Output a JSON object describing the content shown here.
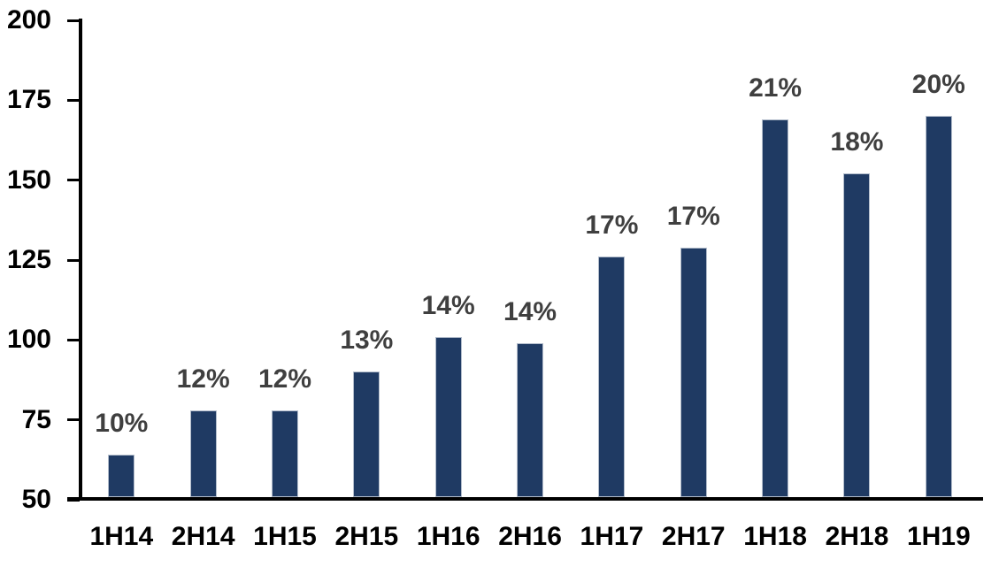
{
  "chart_data": {
    "type": "bar",
    "title": "",
    "xlabel": "",
    "ylabel": "",
    "categories": [
      "1H14",
      "2H14",
      "1H15",
      "2H15",
      "1H16",
      "2H16",
      "1H17",
      "2H17",
      "1H18",
      "2H18",
      "1H19"
    ],
    "values": [
      64,
      78,
      78,
      90,
      101,
      99,
      126,
      129,
      169,
      152,
      170
    ],
    "data_labels": [
      "10%",
      "12%",
      "12%",
      "13%",
      "14%",
      "14%",
      "17%",
      "17%",
      "21%",
      "18%",
      "20%"
    ],
    "ylim": [
      50,
      200
    ],
    "ytick_step": 25,
    "yticks": [
      200,
      175,
      150,
      125,
      100,
      75,
      50
    ],
    "grid": false,
    "legend": false,
    "bar_color": "#1F3A63",
    "bar_border_color": "#B2BCCB",
    "label_color": "#3F3F3F",
    "axis_color": "#000000",
    "background_color": "#FFFFFF"
  }
}
